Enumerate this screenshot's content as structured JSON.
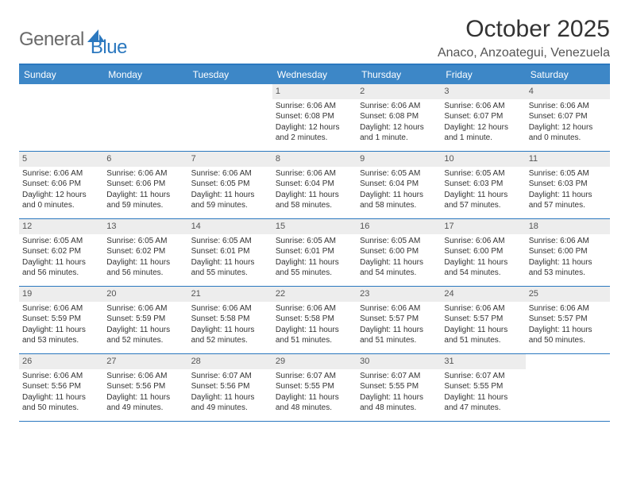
{
  "brand": {
    "part1": "General",
    "part2": "Blue"
  },
  "title": "October 2025",
  "location": "Anaco, Anzoategui, Venezuela",
  "colors": {
    "header_bar": "#3d87c7",
    "border": "#2b78bf",
    "daynum_bg": "#ededed",
    "text": "#333333",
    "logo_gray": "#6a6a6a",
    "logo_blue": "#2b78bf"
  },
  "dow": [
    "Sunday",
    "Monday",
    "Tuesday",
    "Wednesday",
    "Thursday",
    "Friday",
    "Saturday"
  ],
  "weeks": [
    [
      {
        "n": "",
        "sr": "",
        "ss": "",
        "dl": ""
      },
      {
        "n": "",
        "sr": "",
        "ss": "",
        "dl": ""
      },
      {
        "n": "",
        "sr": "",
        "ss": "",
        "dl": ""
      },
      {
        "n": "1",
        "sr": "Sunrise: 6:06 AM",
        "ss": "Sunset: 6:08 PM",
        "dl": "Daylight: 12 hours and 2 minutes."
      },
      {
        "n": "2",
        "sr": "Sunrise: 6:06 AM",
        "ss": "Sunset: 6:08 PM",
        "dl": "Daylight: 12 hours and 1 minute."
      },
      {
        "n": "3",
        "sr": "Sunrise: 6:06 AM",
        "ss": "Sunset: 6:07 PM",
        "dl": "Daylight: 12 hours and 1 minute."
      },
      {
        "n": "4",
        "sr": "Sunrise: 6:06 AM",
        "ss": "Sunset: 6:07 PM",
        "dl": "Daylight: 12 hours and 0 minutes."
      }
    ],
    [
      {
        "n": "5",
        "sr": "Sunrise: 6:06 AM",
        "ss": "Sunset: 6:06 PM",
        "dl": "Daylight: 12 hours and 0 minutes."
      },
      {
        "n": "6",
        "sr": "Sunrise: 6:06 AM",
        "ss": "Sunset: 6:06 PM",
        "dl": "Daylight: 11 hours and 59 minutes."
      },
      {
        "n": "7",
        "sr": "Sunrise: 6:06 AM",
        "ss": "Sunset: 6:05 PM",
        "dl": "Daylight: 11 hours and 59 minutes."
      },
      {
        "n": "8",
        "sr": "Sunrise: 6:06 AM",
        "ss": "Sunset: 6:04 PM",
        "dl": "Daylight: 11 hours and 58 minutes."
      },
      {
        "n": "9",
        "sr": "Sunrise: 6:05 AM",
        "ss": "Sunset: 6:04 PM",
        "dl": "Daylight: 11 hours and 58 minutes."
      },
      {
        "n": "10",
        "sr": "Sunrise: 6:05 AM",
        "ss": "Sunset: 6:03 PM",
        "dl": "Daylight: 11 hours and 57 minutes."
      },
      {
        "n": "11",
        "sr": "Sunrise: 6:05 AM",
        "ss": "Sunset: 6:03 PM",
        "dl": "Daylight: 11 hours and 57 minutes."
      }
    ],
    [
      {
        "n": "12",
        "sr": "Sunrise: 6:05 AM",
        "ss": "Sunset: 6:02 PM",
        "dl": "Daylight: 11 hours and 56 minutes."
      },
      {
        "n": "13",
        "sr": "Sunrise: 6:05 AM",
        "ss": "Sunset: 6:02 PM",
        "dl": "Daylight: 11 hours and 56 minutes."
      },
      {
        "n": "14",
        "sr": "Sunrise: 6:05 AM",
        "ss": "Sunset: 6:01 PM",
        "dl": "Daylight: 11 hours and 55 minutes."
      },
      {
        "n": "15",
        "sr": "Sunrise: 6:05 AM",
        "ss": "Sunset: 6:01 PM",
        "dl": "Daylight: 11 hours and 55 minutes."
      },
      {
        "n": "16",
        "sr": "Sunrise: 6:05 AM",
        "ss": "Sunset: 6:00 PM",
        "dl": "Daylight: 11 hours and 54 minutes."
      },
      {
        "n": "17",
        "sr": "Sunrise: 6:06 AM",
        "ss": "Sunset: 6:00 PM",
        "dl": "Daylight: 11 hours and 54 minutes."
      },
      {
        "n": "18",
        "sr": "Sunrise: 6:06 AM",
        "ss": "Sunset: 6:00 PM",
        "dl": "Daylight: 11 hours and 53 minutes."
      }
    ],
    [
      {
        "n": "19",
        "sr": "Sunrise: 6:06 AM",
        "ss": "Sunset: 5:59 PM",
        "dl": "Daylight: 11 hours and 53 minutes."
      },
      {
        "n": "20",
        "sr": "Sunrise: 6:06 AM",
        "ss": "Sunset: 5:59 PM",
        "dl": "Daylight: 11 hours and 52 minutes."
      },
      {
        "n": "21",
        "sr": "Sunrise: 6:06 AM",
        "ss": "Sunset: 5:58 PM",
        "dl": "Daylight: 11 hours and 52 minutes."
      },
      {
        "n": "22",
        "sr": "Sunrise: 6:06 AM",
        "ss": "Sunset: 5:58 PM",
        "dl": "Daylight: 11 hours and 51 minutes."
      },
      {
        "n": "23",
        "sr": "Sunrise: 6:06 AM",
        "ss": "Sunset: 5:57 PM",
        "dl": "Daylight: 11 hours and 51 minutes."
      },
      {
        "n": "24",
        "sr": "Sunrise: 6:06 AM",
        "ss": "Sunset: 5:57 PM",
        "dl": "Daylight: 11 hours and 51 minutes."
      },
      {
        "n": "25",
        "sr": "Sunrise: 6:06 AM",
        "ss": "Sunset: 5:57 PM",
        "dl": "Daylight: 11 hours and 50 minutes."
      }
    ],
    [
      {
        "n": "26",
        "sr": "Sunrise: 6:06 AM",
        "ss": "Sunset: 5:56 PM",
        "dl": "Daylight: 11 hours and 50 minutes."
      },
      {
        "n": "27",
        "sr": "Sunrise: 6:06 AM",
        "ss": "Sunset: 5:56 PM",
        "dl": "Daylight: 11 hours and 49 minutes."
      },
      {
        "n": "28",
        "sr": "Sunrise: 6:07 AM",
        "ss": "Sunset: 5:56 PM",
        "dl": "Daylight: 11 hours and 49 minutes."
      },
      {
        "n": "29",
        "sr": "Sunrise: 6:07 AM",
        "ss": "Sunset: 5:55 PM",
        "dl": "Daylight: 11 hours and 48 minutes."
      },
      {
        "n": "30",
        "sr": "Sunrise: 6:07 AM",
        "ss": "Sunset: 5:55 PM",
        "dl": "Daylight: 11 hours and 48 minutes."
      },
      {
        "n": "31",
        "sr": "Sunrise: 6:07 AM",
        "ss": "Sunset: 5:55 PM",
        "dl": "Daylight: 11 hours and 47 minutes."
      },
      {
        "n": "",
        "sr": "",
        "ss": "",
        "dl": ""
      }
    ]
  ]
}
